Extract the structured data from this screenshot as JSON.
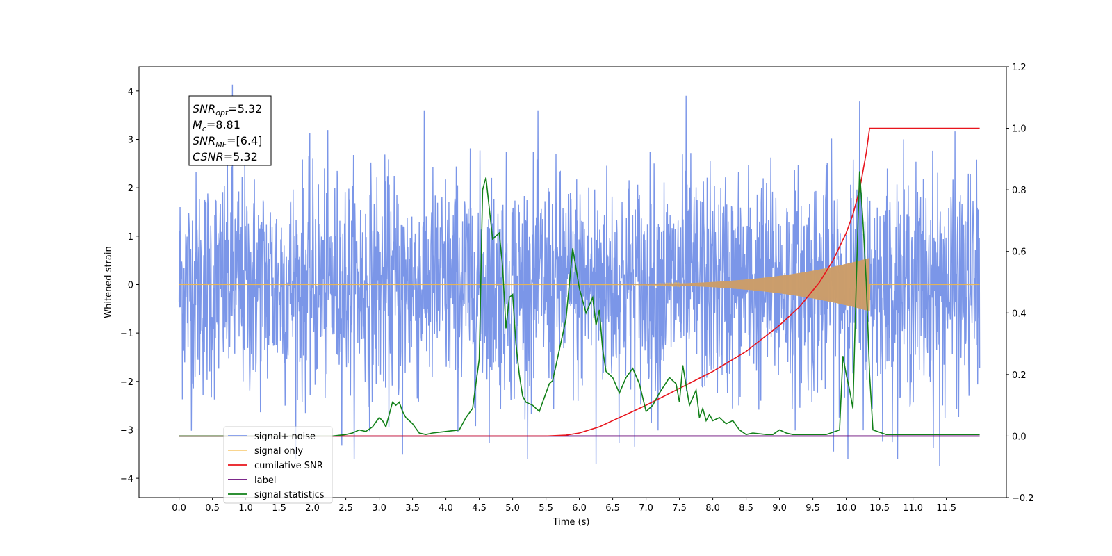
{
  "chart_data": {
    "type": "line",
    "xlabel": "Time (s)",
    "ylabel_left": "Whitened strain",
    "xlim": [
      -0.6,
      12.4
    ],
    "ylim_left": [
      -4.4,
      4.5
    ],
    "ylim_right": [
      -0.2,
      1.2
    ],
    "x_ticks": [
      0.0,
      0.5,
      1.0,
      1.5,
      2.0,
      2.5,
      3.0,
      3.5,
      4.0,
      4.5,
      5.0,
      5.5,
      6.0,
      6.5,
      7.0,
      7.5,
      8.0,
      8.5,
      9.0,
      9.5,
      10.0,
      10.5,
      11.0,
      11.5
    ],
    "x_tick_labels": [
      "0.0",
      "0.5",
      "1.0",
      "1.5",
      "2.0",
      "2.5",
      "3.0",
      "3.5",
      "4.0",
      "4.5",
      "5.0",
      "5.5",
      "6.0",
      "6.5",
      "7.0",
      "7.5",
      "8.0",
      "8.5",
      "9.0",
      "9.5",
      "10.0",
      "10.5",
      "11.0",
      "11.5"
    ],
    "y_left_ticks": [
      -4,
      -3,
      -2,
      -1,
      0,
      1,
      2,
      3,
      4
    ],
    "y_left_tick_labels": [
      "−4",
      "−3",
      "−2",
      "−1",
      "0",
      "1",
      "2",
      "3",
      "4"
    ],
    "y_right_ticks": [
      -0.2,
      0.0,
      0.2,
      0.4,
      0.6,
      0.8,
      1.0,
      1.2
    ],
    "y_right_tick_labels": [
      "−0.2",
      "0.0",
      "0.2",
      "0.4",
      "0.6",
      "0.8",
      "1.0",
      "1.2"
    ],
    "grid": false,
    "legend_position": "lower-left",
    "series": [
      {
        "name": "signal+ noise",
        "axis": "left",
        "color": "#7b96e8",
        "description_range": [
          0.0,
          12.0
        ],
        "amplitude_typical": 2.5,
        "peaks": [
          [
            0.8,
            4.13
          ],
          [
            7.6,
            3.9
          ],
          [
            10.2,
            3.78
          ],
          [
            11.4,
            -3.75
          ],
          [
            6.25,
            -3.7
          ],
          [
            3.35,
            -3.5
          ]
        ]
      },
      {
        "name": "signal only",
        "axis": "left",
        "color": "#f5b942",
        "chirp_start": 6.0,
        "chirp_end": 10.35,
        "amplitude_max": 0.55
      },
      {
        "name": "cumilative SNR",
        "axis": "right",
        "color": "#e8141c",
        "x": [
          0.0,
          5.0,
          5.5,
          5.8,
          6.0,
          6.3,
          6.6,
          7.0,
          7.5,
          8.0,
          8.5,
          9.0,
          9.3,
          9.6,
          9.8,
          10.0,
          10.1,
          10.2,
          10.3,
          10.35,
          12.0
        ],
        "y": [
          0.0,
          0.0,
          0.0,
          0.003,
          0.01,
          0.03,
          0.06,
          0.1,
          0.155,
          0.21,
          0.275,
          0.36,
          0.42,
          0.5,
          0.57,
          0.66,
          0.72,
          0.8,
          0.92,
          1.0,
          1.0
        ]
      },
      {
        "name": "label",
        "axis": "right",
        "color": "#6a0a7a",
        "x": [
          0.0,
          12.0
        ],
        "y": [
          0.0,
          0.0
        ]
      },
      {
        "name": "signal statistics",
        "axis": "right",
        "color": "#118018",
        "x": [
          0.0,
          2.3,
          2.5,
          2.6,
          2.7,
          2.8,
          2.9,
          3.0,
          3.05,
          3.1,
          3.2,
          3.25,
          3.3,
          3.35,
          3.4,
          3.5,
          3.6,
          3.7,
          3.8,
          4.0,
          4.2,
          4.25,
          4.3,
          4.4,
          4.5,
          4.55,
          4.6,
          4.7,
          4.8,
          4.85,
          4.9,
          4.95,
          5.0,
          5.05,
          5.1,
          5.15,
          5.2,
          5.3,
          5.4,
          5.5,
          5.55,
          5.6,
          5.7,
          5.8,
          5.9,
          6.0,
          6.05,
          6.1,
          6.2,
          6.25,
          6.3,
          6.35,
          6.4,
          6.5,
          6.6,
          6.7,
          6.8,
          6.9,
          7.0,
          7.1,
          7.2,
          7.35,
          7.45,
          7.5,
          7.55,
          7.65,
          7.75,
          7.8,
          7.85,
          7.9,
          7.95,
          8.0,
          8.1,
          8.2,
          8.3,
          8.4,
          8.5,
          8.6,
          8.8,
          8.9,
          9.0,
          9.1,
          9.2,
          9.5,
          9.7,
          9.9,
          9.95,
          10.0,
          10.05,
          10.1,
          10.15,
          10.2,
          10.25,
          10.3,
          10.35,
          10.4,
          10.6,
          12.0
        ],
        "y": [
          0.0,
          0.0,
          0.005,
          0.01,
          0.02,
          0.015,
          0.03,
          0.06,
          0.05,
          0.03,
          0.11,
          0.1,
          0.11,
          0.08,
          0.06,
          0.04,
          0.01,
          0.005,
          0.01,
          0.015,
          0.02,
          0.04,
          0.06,
          0.09,
          0.25,
          0.8,
          0.84,
          0.64,
          0.66,
          0.55,
          0.35,
          0.45,
          0.46,
          0.3,
          0.2,
          0.13,
          0.11,
          0.1,
          0.08,
          0.14,
          0.17,
          0.18,
          0.28,
          0.38,
          0.61,
          0.48,
          0.44,
          0.4,
          0.45,
          0.36,
          0.41,
          0.28,
          0.21,
          0.19,
          0.14,
          0.19,
          0.22,
          0.17,
          0.08,
          0.1,
          0.14,
          0.19,
          0.17,
          0.11,
          0.23,
          0.1,
          0.15,
          0.06,
          0.09,
          0.05,
          0.07,
          0.05,
          0.06,
          0.04,
          0.05,
          0.02,
          0.005,
          0.01,
          0.005,
          0.005,
          0.02,
          0.01,
          0.005,
          0.005,
          0.005,
          0.02,
          0.26,
          0.2,
          0.15,
          0.09,
          0.5,
          0.86,
          0.7,
          0.5,
          0.2,
          0.02,
          0.005,
          0.005
        ]
      }
    ],
    "annotation": {
      "lines": [
        {
          "main": "SNR",
          "sub": "opt",
          "rest": "=5.32"
        },
        {
          "main": "M",
          "sub": "c",
          "rest": "=8.81"
        },
        {
          "main": "SNR",
          "sub": "MF",
          "rest": "=[6.4]"
        },
        {
          "main": "CSNR",
          "sub": "",
          "rest": "=5.32"
        }
      ]
    }
  }
}
